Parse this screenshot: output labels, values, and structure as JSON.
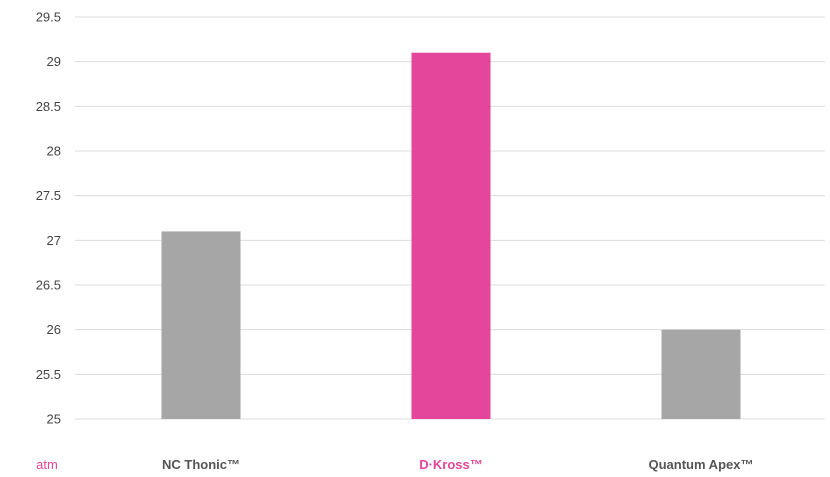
{
  "chart_data": {
    "type": "bar",
    "categories": [
      "NC Thonic™",
      "D·Kross™",
      "Quantum Apex™"
    ],
    "values": [
      27.1,
      29.1,
      26.0
    ],
    "ylim": [
      25,
      29.5
    ],
    "yticks": [
      25,
      25.5,
      26,
      26.5,
      27,
      27.5,
      28,
      28.5,
      29,
      29.5
    ],
    "unit_label": "atm",
    "grid": true,
    "bar_colors": [
      "#a6a6a6",
      "#e3469a",
      "#a6a6a6"
    ],
    "category_label_colors": [
      "#555555",
      "#e3469a",
      "#555555"
    ],
    "unit_label_color": "#e3469a",
    "highlight_category": "D·Kross™"
  }
}
